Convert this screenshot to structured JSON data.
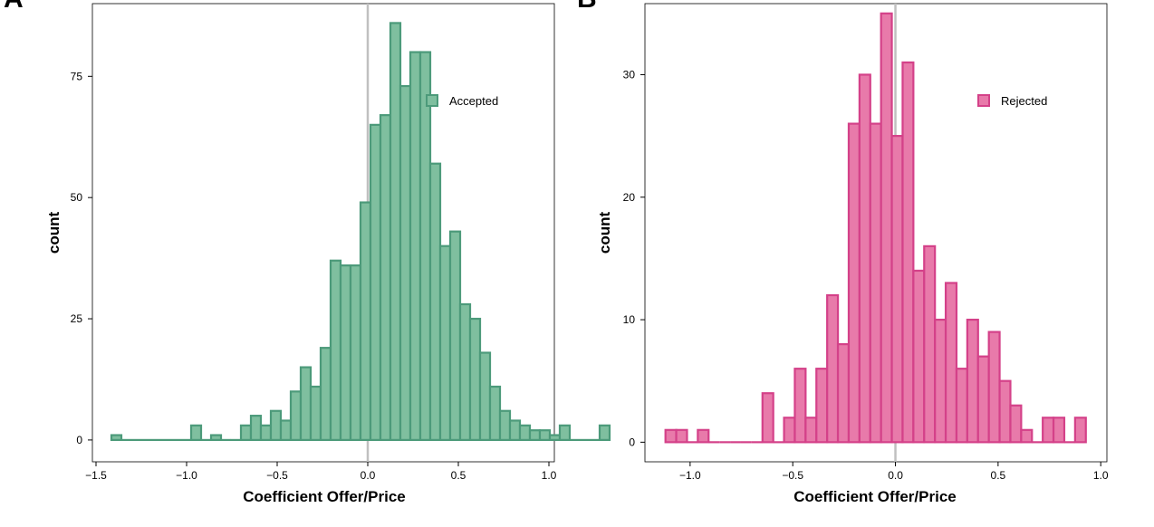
{
  "chart_data": [
    {
      "type": "bar",
      "panel_label": "A",
      "xlabel": "Coefficient Offer/Price",
      "ylabel": "count",
      "xlim": [
        -1.52,
        1.03
      ],
      "ylim": [
        -4.5,
        90
      ],
      "xticks": [
        -1.5,
        -1.0,
        -0.5,
        0.0,
        0.5,
        1.0
      ],
      "xtick_labels": [
        "−1.5",
        "−1.0",
        "−0.5",
        "0.0",
        "0.5",
        "1.0"
      ],
      "yticks": [
        0,
        25,
        50,
        75
      ],
      "ytick_labels": [
        "0",
        "25",
        "50",
        "75"
      ],
      "bin_width": 0.055,
      "bin_start": -1.415,
      "values": [
        1,
        0,
        0,
        0,
        0,
        0,
        0,
        0,
        3,
        0,
        1,
        0,
        0,
        3,
        5,
        3,
        6,
        4,
        10,
        15,
        11,
        19,
        37,
        36,
        36,
        49,
        65,
        67,
        86,
        73,
        80,
        80,
        57,
        40,
        43,
        28,
        25,
        18,
        11,
        6,
        4,
        3,
        2,
        2,
        1,
        3,
        0,
        0,
        0,
        3
      ],
      "vline_x": 0,
      "legend": {
        "label": "Accepted",
        "position": "top-right"
      },
      "fill": "#7fbf9f",
      "stroke": "#4c9a7a"
    },
    {
      "type": "bar",
      "panel_label": "B",
      "xlabel": "Coefficient Offer/Price",
      "ylabel": "count",
      "xlim": [
        -1.22,
        1.03
      ],
      "ylim": [
        -1.6,
        35.8
      ],
      "xticks": [
        -1.0,
        -0.5,
        0.0,
        0.5,
        1.0
      ],
      "xtick_labels": [
        "−1.0",
        "−0.5",
        "0.0",
        "0.5",
        "1.0"
      ],
      "yticks": [
        0,
        10,
        20,
        30
      ],
      "ytick_labels": [
        "0",
        "10",
        "20",
        "30"
      ],
      "bin_width": 0.0525,
      "bin_start": -1.12,
      "values": [
        1,
        1,
        0,
        1,
        0,
        0,
        0,
        0,
        0,
        4,
        0,
        2,
        6,
        2,
        6,
        12,
        8,
        26,
        30,
        26,
        35,
        25,
        31,
        14,
        16,
        10,
        13,
        6,
        10,
        7,
        9,
        5,
        3,
        1,
        0,
        2,
        2,
        0,
        2
      ],
      "vline_x": 0,
      "legend": {
        "label": "Rejected",
        "position": "top-right"
      },
      "fill": "#e87aaa",
      "stroke": "#d44189"
    }
  ],
  "colors": {
    "vline": "#c0c0c0",
    "frame": "#000000"
  }
}
